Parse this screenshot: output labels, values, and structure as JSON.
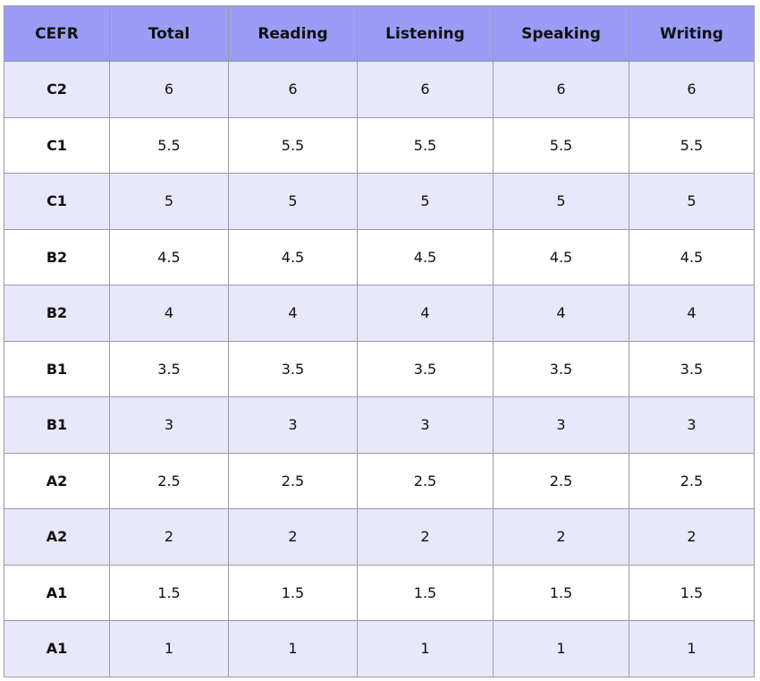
{
  "table": {
    "header": [
      "CEFR",
      "Total",
      "Reading",
      "Listening",
      "Speaking",
      "Writing"
    ],
    "rows": [
      [
        "C2",
        6,
        6,
        6,
        6,
        6
      ],
      [
        "C1",
        5.5,
        5.5,
        5.5,
        5.5,
        5.5
      ],
      [
        "C1",
        5,
        5,
        5,
        5,
        5
      ],
      [
        "B2",
        4.5,
        4.5,
        4.5,
        4.5,
        4.5
      ],
      [
        "B2",
        4,
        4,
        4,
        4,
        4
      ],
      [
        "B1",
        3.5,
        3.5,
        3.5,
        3.5,
        3.5
      ],
      [
        "B1",
        3,
        3,
        3,
        3,
        3
      ],
      [
        "A2",
        2.5,
        2.5,
        2.5,
        2.5,
        2.5
      ],
      [
        "A2",
        2,
        2,
        2,
        2,
        2
      ],
      [
        "A1",
        1.5,
        1.5,
        1.5,
        1.5,
        1.5
      ],
      [
        "A1",
        1,
        1,
        1,
        1,
        1
      ]
    ]
  }
}
